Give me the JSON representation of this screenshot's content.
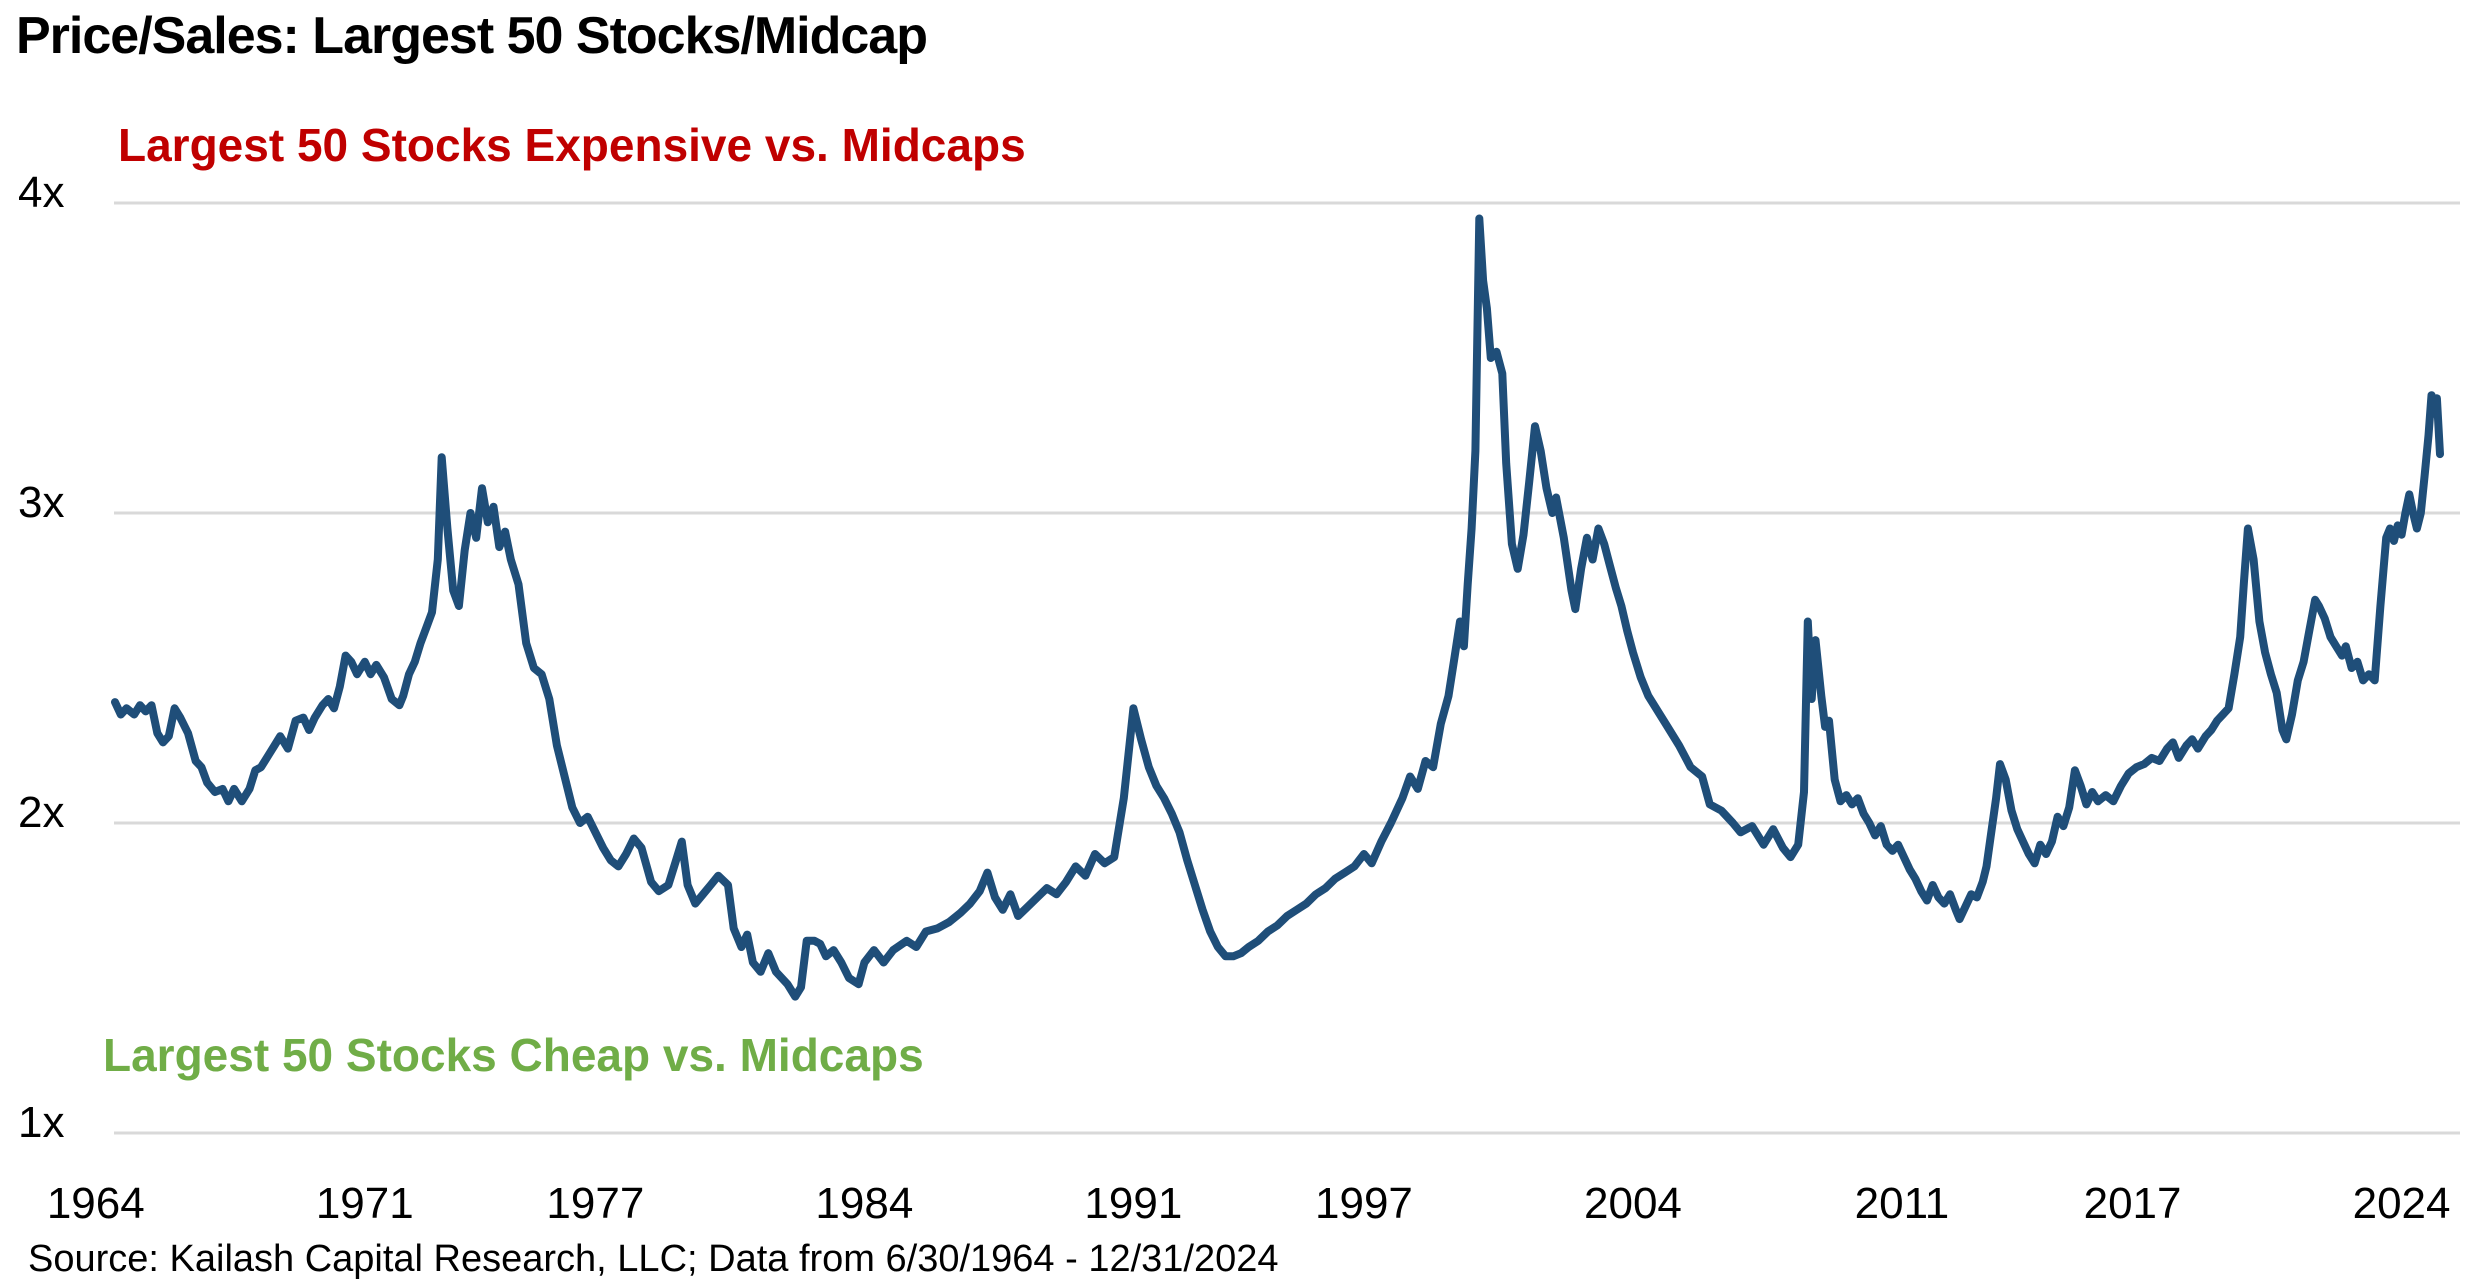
{
  "title": "Price/Sales: Largest 50 Stocks/Midcap",
  "annotations": {
    "expensive": {
      "text": "Largest 50 Stocks Expensive vs. Midcaps",
      "color": "#C00000"
    },
    "cheap": {
      "text": "Largest 50 Stocks Cheap vs. Midcaps",
      "color": "#70AD47"
    }
  },
  "source": "Source: Kailash Capital Research, LLC; Data from 6/30/1964 - 12/31/2024",
  "chart_data": {
    "type": "line",
    "title": "Price/Sales: Largest 50 Stocks/Midcap",
    "series_name": "Price/Sales ratio of Largest 50 Stocks vs Midcap",
    "line_color": "#1F4E79",
    "grid_color": "#D9D9D9",
    "background_color": "#FFFFFF",
    "ylim": [
      1,
      4
    ],
    "x_range_years": [
      1964.5,
      2025.0
    ],
    "grid": "horizontal-only",
    "legend_position": "none",
    "yticks": [
      {
        "label": "4x",
        "value": 4
      },
      {
        "label": "3x",
        "value": 3
      },
      {
        "label": "2x",
        "value": 2
      },
      {
        "label": "1x",
        "value": 1
      }
    ],
    "xticks": [
      {
        "label": "1964",
        "year": 1964
      },
      {
        "label": "1971",
        "year": 1971
      },
      {
        "label": "1977",
        "year": 1977
      },
      {
        "label": "1984",
        "year": 1984
      },
      {
        "label": "1991",
        "year": 1991
      },
      {
        "label": "1997",
        "year": 1997
      },
      {
        "label": "2004",
        "year": 2004
      },
      {
        "label": "2011",
        "year": 2011
      },
      {
        "label": "2017",
        "year": 2017
      },
      {
        "label": "2024",
        "year": 2024
      }
    ],
    "points": [
      [
        1964.5,
        2.39
      ],
      [
        1964.65,
        2.35
      ],
      [
        1964.8,
        2.37
      ],
      [
        1965.0,
        2.35
      ],
      [
        1965.15,
        2.38
      ],
      [
        1965.3,
        2.36
      ],
      [
        1965.45,
        2.38
      ],
      [
        1965.6,
        2.29
      ],
      [
        1965.75,
        2.26
      ],
      [
        1965.9,
        2.28
      ],
      [
        1966.05,
        2.37
      ],
      [
        1966.2,
        2.34
      ],
      [
        1966.4,
        2.29
      ],
      [
        1966.6,
        2.2
      ],
      [
        1966.75,
        2.18
      ],
      [
        1966.9,
        2.13
      ],
      [
        1967.1,
        2.1
      ],
      [
        1967.3,
        2.11
      ],
      [
        1967.45,
        2.07
      ],
      [
        1967.6,
        2.11
      ],
      [
        1967.8,
        2.07
      ],
      [
        1968.0,
        2.11
      ],
      [
        1968.15,
        2.17
      ],
      [
        1968.3,
        2.18
      ],
      [
        1968.5,
        2.22
      ],
      [
        1968.65,
        2.25
      ],
      [
        1968.8,
        2.28
      ],
      [
        1969.0,
        2.24
      ],
      [
        1969.2,
        2.33
      ],
      [
        1969.4,
        2.34
      ],
      [
        1969.55,
        2.3
      ],
      [
        1969.7,
        2.34
      ],
      [
        1969.9,
        2.38
      ],
      [
        1970.05,
        2.4
      ],
      [
        1970.2,
        2.37
      ],
      [
        1970.35,
        2.44
      ],
      [
        1970.5,
        2.54
      ],
      [
        1970.65,
        2.52
      ],
      [
        1970.8,
        2.48
      ],
      [
        1971.0,
        2.52
      ],
      [
        1971.15,
        2.48
      ],
      [
        1971.3,
        2.51
      ],
      [
        1971.5,
        2.47
      ],
      [
        1971.7,
        2.4
      ],
      [
        1971.9,
        2.38
      ],
      [
        1972.0,
        2.41
      ],
      [
        1972.15,
        2.48
      ],
      [
        1972.3,
        2.52
      ],
      [
        1972.45,
        2.58
      ],
      [
        1972.6,
        2.63
      ],
      [
        1972.75,
        2.68
      ],
      [
        1972.9,
        2.85
      ],
      [
        1973.0,
        3.18
      ],
      [
        1973.15,
        2.95
      ],
      [
        1973.3,
        2.75
      ],
      [
        1973.45,
        2.7
      ],
      [
        1973.6,
        2.88
      ],
      [
        1973.75,
        3.0
      ],
      [
        1973.9,
        2.92
      ],
      [
        1974.05,
        3.08
      ],
      [
        1974.2,
        2.97
      ],
      [
        1974.35,
        3.02
      ],
      [
        1974.5,
        2.89
      ],
      [
        1974.65,
        2.94
      ],
      [
        1974.8,
        2.85
      ],
      [
        1975.0,
        2.77
      ],
      [
        1975.2,
        2.58
      ],
      [
        1975.4,
        2.5
      ],
      [
        1975.6,
        2.48
      ],
      [
        1975.8,
        2.4
      ],
      [
        1976.0,
        2.25
      ],
      [
        1976.2,
        2.15
      ],
      [
        1976.4,
        2.05
      ],
      [
        1976.6,
        2.0
      ],
      [
        1976.8,
        2.02
      ],
      [
        1977.0,
        1.97
      ],
      [
        1977.2,
        1.92
      ],
      [
        1977.4,
        1.88
      ],
      [
        1977.6,
        1.86
      ],
      [
        1977.8,
        1.9
      ],
      [
        1978.0,
        1.95
      ],
      [
        1978.2,
        1.92
      ],
      [
        1978.45,
        1.81
      ],
      [
        1978.65,
        1.78
      ],
      [
        1978.9,
        1.8
      ],
      [
        1979.1,
        1.88
      ],
      [
        1979.25,
        1.94
      ],
      [
        1979.4,
        1.8
      ],
      [
        1979.6,
        1.74
      ],
      [
        1979.8,
        1.77
      ],
      [
        1980.0,
        1.8
      ],
      [
        1980.2,
        1.83
      ],
      [
        1980.45,
        1.8
      ],
      [
        1980.6,
        1.66
      ],
      [
        1980.8,
        1.6
      ],
      [
        1980.95,
        1.64
      ],
      [
        1981.1,
        1.55
      ],
      [
        1981.3,
        1.52
      ],
      [
        1981.5,
        1.58
      ],
      [
        1981.7,
        1.52
      ],
      [
        1982.0,
        1.48
      ],
      [
        1982.2,
        1.44
      ],
      [
        1982.35,
        1.47
      ],
      [
        1982.5,
        1.62
      ],
      [
        1982.7,
        1.62
      ],
      [
        1982.85,
        1.61
      ],
      [
        1983.0,
        1.57
      ],
      [
        1983.2,
        1.59
      ],
      [
        1983.4,
        1.55
      ],
      [
        1983.6,
        1.5
      ],
      [
        1983.85,
        1.48
      ],
      [
        1984.0,
        1.55
      ],
      [
        1984.25,
        1.59
      ],
      [
        1984.5,
        1.55
      ],
      [
        1984.75,
        1.59
      ],
      [
        1985.1,
        1.62
      ],
      [
        1985.35,
        1.6
      ],
      [
        1985.6,
        1.65
      ],
      [
        1985.9,
        1.66
      ],
      [
        1986.2,
        1.68
      ],
      [
        1986.5,
        1.71
      ],
      [
        1986.75,
        1.74
      ],
      [
        1987.0,
        1.78
      ],
      [
        1987.2,
        1.84
      ],
      [
        1987.4,
        1.76
      ],
      [
        1987.6,
        1.72
      ],
      [
        1987.8,
        1.77
      ],
      [
        1988.0,
        1.7
      ],
      [
        1988.25,
        1.73
      ],
      [
        1988.5,
        1.76
      ],
      [
        1988.75,
        1.79
      ],
      [
        1989.0,
        1.77
      ],
      [
        1989.25,
        1.81
      ],
      [
        1989.5,
        1.86
      ],
      [
        1989.75,
        1.83
      ],
      [
        1990.0,
        1.9
      ],
      [
        1990.25,
        1.87
      ],
      [
        1990.5,
        1.89
      ],
      [
        1990.75,
        2.08
      ],
      [
        1991.0,
        2.37
      ],
      [
        1991.2,
        2.27
      ],
      [
        1991.4,
        2.18
      ],
      [
        1991.6,
        2.12
      ],
      [
        1991.8,
        2.08
      ],
      [
        1992.0,
        2.03
      ],
      [
        1992.2,
        1.97
      ],
      [
        1992.4,
        1.88
      ],
      [
        1992.6,
        1.8
      ],
      [
        1992.8,
        1.72
      ],
      [
        1993.0,
        1.65
      ],
      [
        1993.2,
        1.6
      ],
      [
        1993.4,
        1.57
      ],
      [
        1993.6,
        1.57
      ],
      [
        1993.8,
        1.58
      ],
      [
        1994.0,
        1.6
      ],
      [
        1994.25,
        1.62
      ],
      [
        1994.5,
        1.65
      ],
      [
        1994.75,
        1.67
      ],
      [
        1995.0,
        1.7
      ],
      [
        1995.25,
        1.72
      ],
      [
        1995.5,
        1.74
      ],
      [
        1995.75,
        1.77
      ],
      [
        1996.0,
        1.79
      ],
      [
        1996.25,
        1.82
      ],
      [
        1996.5,
        1.84
      ],
      [
        1996.75,
        1.86
      ],
      [
        1997.0,
        1.9
      ],
      [
        1997.2,
        1.87
      ],
      [
        1997.45,
        1.94
      ],
      [
        1997.7,
        2.0
      ],
      [
        1998.0,
        2.08
      ],
      [
        1998.2,
        2.15
      ],
      [
        1998.4,
        2.11
      ],
      [
        1998.6,
        2.2
      ],
      [
        1998.8,
        2.18
      ],
      [
        1999.0,
        2.32
      ],
      [
        1999.2,
        2.41
      ],
      [
        1999.35,
        2.53
      ],
      [
        1999.5,
        2.65
      ],
      [
        1999.6,
        2.57
      ],
      [
        1999.7,
        2.77
      ],
      [
        1999.8,
        2.95
      ],
      [
        1999.9,
        3.2
      ],
      [
        2000.0,
        3.95
      ],
      [
        2000.1,
        3.75
      ],
      [
        2000.2,
        3.66
      ],
      [
        2000.3,
        3.5
      ],
      [
        2000.45,
        3.52
      ],
      [
        2000.6,
        3.45
      ],
      [
        2000.7,
        3.16
      ],
      [
        2000.85,
        2.9
      ],
      [
        2001.0,
        2.82
      ],
      [
        2001.15,
        2.93
      ],
      [
        2001.3,
        3.1
      ],
      [
        2001.45,
        3.28
      ],
      [
        2001.6,
        3.2
      ],
      [
        2001.75,
        3.08
      ],
      [
        2001.9,
        3.0
      ],
      [
        2002.0,
        3.05
      ],
      [
        2002.2,
        2.92
      ],
      [
        2002.4,
        2.75
      ],
      [
        2002.5,
        2.69
      ],
      [
        2002.65,
        2.82
      ],
      [
        2002.8,
        2.92
      ],
      [
        2002.95,
        2.85
      ],
      [
        2003.1,
        2.95
      ],
      [
        2003.25,
        2.9
      ],
      [
        2003.4,
        2.83
      ],
      [
        2003.55,
        2.76
      ],
      [
        2003.7,
        2.7
      ],
      [
        2003.85,
        2.62
      ],
      [
        2004.0,
        2.55
      ],
      [
        2004.2,
        2.47
      ],
      [
        2004.4,
        2.41
      ],
      [
        2004.7,
        2.35
      ],
      [
        2004.9,
        2.31
      ],
      [
        2005.2,
        2.25
      ],
      [
        2005.5,
        2.18
      ],
      [
        2005.8,
        2.15
      ],
      [
        2006.0,
        2.06
      ],
      [
        2006.3,
        2.04
      ],
      [
        2006.6,
        2.0
      ],
      [
        2006.8,
        1.97
      ],
      [
        2007.1,
        1.99
      ],
      [
        2007.4,
        1.93
      ],
      [
        2007.65,
        1.98
      ],
      [
        2007.9,
        1.92
      ],
      [
        2008.1,
        1.89
      ],
      [
        2008.3,
        1.93
      ],
      [
        2008.45,
        2.1
      ],
      [
        2008.55,
        2.65
      ],
      [
        2008.65,
        2.4
      ],
      [
        2008.75,
        2.59
      ],
      [
        2008.9,
        2.41
      ],
      [
        2009.0,
        2.31
      ],
      [
        2009.1,
        2.33
      ],
      [
        2009.25,
        2.14
      ],
      [
        2009.4,
        2.07
      ],
      [
        2009.55,
        2.09
      ],
      [
        2009.7,
        2.06
      ],
      [
        2009.85,
        2.08
      ],
      [
        2010.0,
        2.03
      ],
      [
        2010.15,
        2.0
      ],
      [
        2010.3,
        1.96
      ],
      [
        2010.45,
        1.99
      ],
      [
        2010.6,
        1.93
      ],
      [
        2010.75,
        1.91
      ],
      [
        2010.9,
        1.93
      ],
      [
        2011.05,
        1.89
      ],
      [
        2011.2,
        1.85
      ],
      [
        2011.35,
        1.82
      ],
      [
        2011.5,
        1.78
      ],
      [
        2011.65,
        1.75
      ],
      [
        2011.8,
        1.8
      ],
      [
        2011.95,
        1.76
      ],
      [
        2012.1,
        1.74
      ],
      [
        2012.25,
        1.77
      ],
      [
        2012.4,
        1.72
      ],
      [
        2012.5,
        1.69
      ],
      [
        2012.65,
        1.73
      ],
      [
        2012.8,
        1.77
      ],
      [
        2012.95,
        1.76
      ],
      [
        2013.1,
        1.81
      ],
      [
        2013.2,
        1.86
      ],
      [
        2013.3,
        1.95
      ],
      [
        2013.45,
        2.08
      ],
      [
        2013.55,
        2.19
      ],
      [
        2013.7,
        2.14
      ],
      [
        2013.85,
        2.04
      ],
      [
        2014.0,
        1.98
      ],
      [
        2014.15,
        1.94
      ],
      [
        2014.3,
        1.9
      ],
      [
        2014.45,
        1.87
      ],
      [
        2014.6,
        1.93
      ],
      [
        2014.75,
        1.9
      ],
      [
        2014.9,
        1.94
      ],
      [
        2015.05,
        2.02
      ],
      [
        2015.2,
        1.99
      ],
      [
        2015.35,
        2.05
      ],
      [
        2015.5,
        2.17
      ],
      [
        2015.65,
        2.12
      ],
      [
        2015.8,
        2.06
      ],
      [
        2015.95,
        2.1
      ],
      [
        2016.1,
        2.07
      ],
      [
        2016.3,
        2.09
      ],
      [
        2016.5,
        2.07
      ],
      [
        2016.7,
        2.12
      ],
      [
        2016.9,
        2.16
      ],
      [
        2017.1,
        2.18
      ],
      [
        2017.3,
        2.19
      ],
      [
        2017.5,
        2.21
      ],
      [
        2017.7,
        2.2
      ],
      [
        2017.9,
        2.24
      ],
      [
        2018.05,
        2.26
      ],
      [
        2018.2,
        2.21
      ],
      [
        2018.4,
        2.25
      ],
      [
        2018.55,
        2.27
      ],
      [
        2018.7,
        2.24
      ],
      [
        2018.9,
        2.28
      ],
      [
        2019.05,
        2.3
      ],
      [
        2019.2,
        2.33
      ],
      [
        2019.35,
        2.35
      ],
      [
        2019.5,
        2.37
      ],
      [
        2019.65,
        2.48
      ],
      [
        2019.8,
        2.6
      ],
      [
        2019.9,
        2.78
      ],
      [
        2020.0,
        2.95
      ],
      [
        2020.15,
        2.85
      ],
      [
        2020.3,
        2.65
      ],
      [
        2020.45,
        2.55
      ],
      [
        2020.6,
        2.48
      ],
      [
        2020.75,
        2.42
      ],
      [
        2020.9,
        2.3
      ],
      [
        2021.0,
        2.27
      ],
      [
        2021.15,
        2.35
      ],
      [
        2021.3,
        2.46
      ],
      [
        2021.45,
        2.52
      ],
      [
        2021.6,
        2.62
      ],
      [
        2021.75,
        2.72
      ],
      [
        2021.85,
        2.7
      ],
      [
        2022.0,
        2.66
      ],
      [
        2022.15,
        2.6
      ],
      [
        2022.3,
        2.57
      ],
      [
        2022.45,
        2.54
      ],
      [
        2022.55,
        2.57
      ],
      [
        2022.7,
        2.5
      ],
      [
        2022.85,
        2.52
      ],
      [
        2023.0,
        2.46
      ],
      [
        2023.15,
        2.48
      ],
      [
        2023.3,
        2.46
      ],
      [
        2023.45,
        2.7
      ],
      [
        2023.6,
        2.92
      ],
      [
        2023.7,
        2.95
      ],
      [
        2023.8,
        2.91
      ],
      [
        2023.9,
        2.96
      ],
      [
        2024.0,
        2.93
      ],
      [
        2024.1,
        3.0
      ],
      [
        2024.2,
        3.06
      ],
      [
        2024.3,
        3.0
      ],
      [
        2024.4,
        2.95
      ],
      [
        2024.5,
        3.0
      ],
      [
        2024.6,
        3.12
      ],
      [
        2024.7,
        3.25
      ],
      [
        2024.78,
        3.38
      ],
      [
        2024.85,
        3.32
      ],
      [
        2024.92,
        3.37
      ],
      [
        2025.0,
        3.19
      ]
    ]
  }
}
